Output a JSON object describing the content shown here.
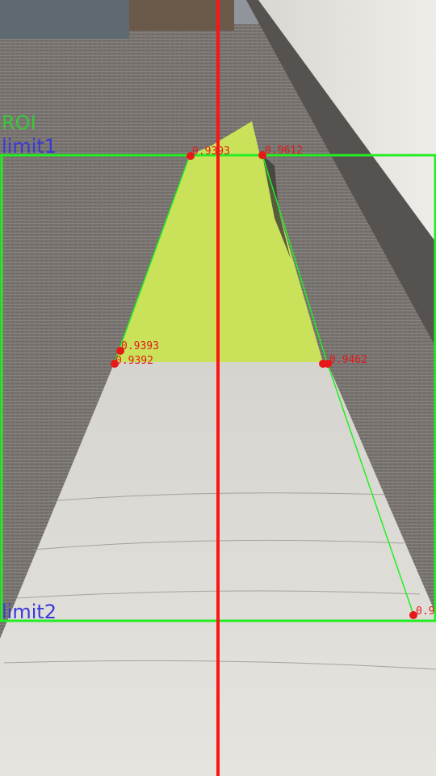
{
  "overlay": {
    "roi_label": "ROI",
    "limit1_label": "limit1",
    "limit2_label": "limit2",
    "points": [
      {
        "label": "0.9393"
      },
      {
        "label": "0.9612"
      },
      {
        "label": "0.9393"
      },
      {
        "label": "0.9392"
      },
      {
        "label": "0.9462"
      },
      {
        "label": "0.9"
      }
    ]
  },
  "colors": {
    "centerline": "#ff1414",
    "roi_box": "#22ee22",
    "limit_text": "#3a3ad8",
    "roi_text": "#39c83a",
    "point": "#e81818",
    "detected_region": "#c9e25a"
  }
}
